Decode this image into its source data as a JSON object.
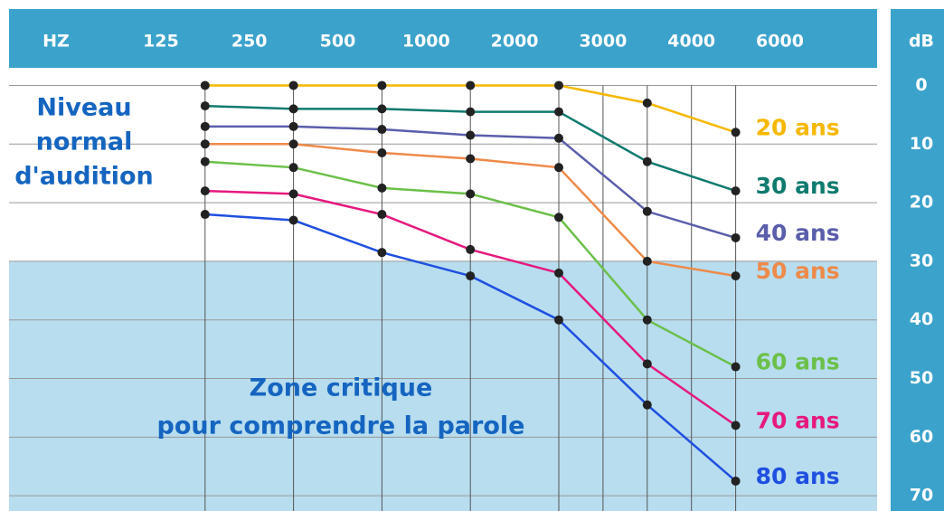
{
  "chart_data": {
    "type": "line",
    "x_label": "HZ",
    "y_label": "dB",
    "categories": [
      "125",
      "250",
      "500",
      "1000",
      "2000",
      "3000",
      "4000",
      "6000"
    ],
    "series": [
      {
        "name": "20 ans",
        "color": "#f5b800",
        "values": [
          0,
          0,
          0,
          0,
          0,
          3,
          8,
          null
        ]
      },
      {
        "name": "30 ans",
        "color": "#0f7a6e",
        "values": [
          3.5,
          4,
          4,
          4.5,
          4.5,
          13,
          18,
          null
        ]
      },
      {
        "name": "40 ans",
        "color": "#5a5eab",
        "values": [
          7,
          7,
          7.5,
          8.5,
          9,
          21.5,
          26,
          null
        ]
      },
      {
        "name": "50 ans",
        "color": "#ee8a4a",
        "values": [
          10,
          10,
          11.5,
          12.5,
          14,
          30,
          32.5,
          null
        ]
      },
      {
        "name": "60 ans",
        "color": "#6cc04a",
        "values": [
          13,
          14,
          17.5,
          18.5,
          22.5,
          40,
          48,
          null
        ]
      },
      {
        "name": "70 ans",
        "color": "#e6197f",
        "values": [
          18,
          18.5,
          22,
          28,
          32,
          47.5,
          58,
          null
        ]
      },
      {
        "name": "80 ans",
        "color": "#1f4fe0",
        "values": [
          22,
          23,
          28.5,
          32.5,
          40,
          54.5,
          67.5,
          null
        ]
      }
    ],
    "ylim": [
      -3,
      72.6
    ],
    "yticks": [
      0,
      10,
      20,
      30,
      40,
      50,
      60,
      70
    ],
    "inverted_y": true,
    "grid": true,
    "shaded_from": 30,
    "annotations": [
      {
        "lines": [
          "Niveau",
          "normal",
          "d'audition"
        ]
      },
      {
        "lines": [
          "Zone critique",
          "pour comprendre la parole"
        ]
      }
    ]
  }
}
